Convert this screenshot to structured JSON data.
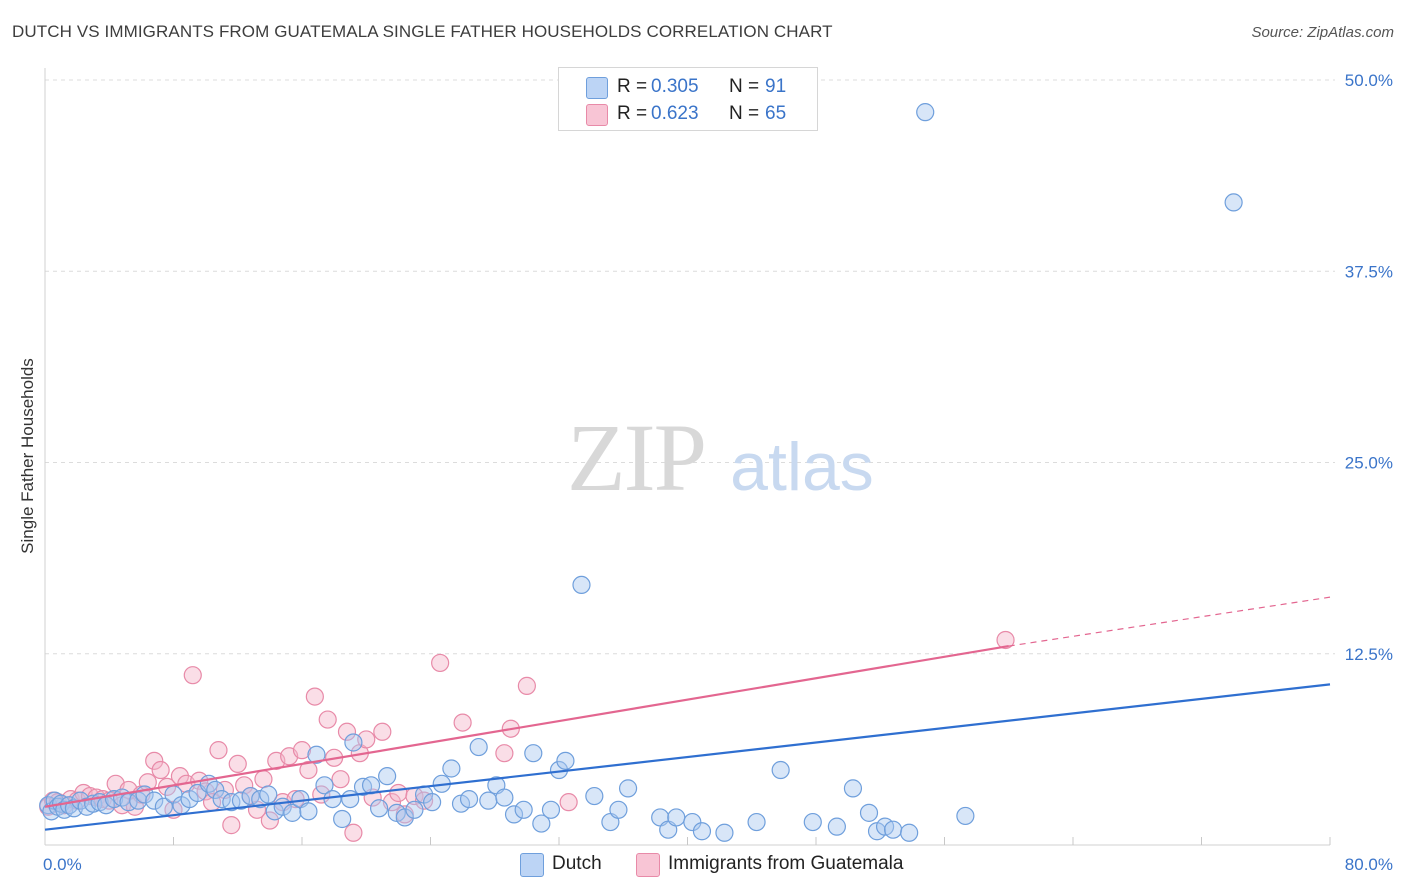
{
  "title": "DUTCH VS IMMIGRANTS FROM GUATEMALA SINGLE FATHER HOUSEHOLDS CORRELATION CHART",
  "source": "Source: ZipAtlas.com",
  "watermark": {
    "zip": "ZIP",
    "atlas": "atlas"
  },
  "colors": {
    "dutch_fill": "#a9c8f0",
    "dutch_stroke": "#6f9fdc",
    "dutch_line": "#2f6fd0",
    "guat_fill": "#f5b5c9",
    "guat_stroke": "#e88aa8",
    "guat_line": "#e36690",
    "axis_text": "#3a74c9",
    "grid": "#dcdcdc"
  },
  "legend": {
    "rows": [
      {
        "r_label": "R =",
        "r_value": "0.305",
        "n_label": "N =",
        "n_value": "91"
      },
      {
        "r_label": "R =",
        "r_value": "0.623",
        "n_label": "N =",
        "n_value": "65"
      }
    ]
  },
  "bottom_legend": {
    "dutch": "Dutch",
    "guat": "Immigrants from Guatemala"
  },
  "chart_data": {
    "type": "scatter",
    "ylabel": "Single Father Households",
    "xlim": [
      0,
      80
    ],
    "ylim": [
      0,
      50
    ],
    "x_tick_labels": [
      "0.0%",
      "80.0%"
    ],
    "y_ticks": [
      12.5,
      25.0,
      37.5,
      50.0
    ],
    "y_tick_labels": [
      "12.5%",
      "25.0%",
      "37.5%",
      "50.0%"
    ],
    "grid": true,
    "legend_position": "top-center",
    "series": [
      {
        "name": "Dutch",
        "trend": {
          "x": [
            0,
            80
          ],
          "y": [
            1.0,
            10.5
          ],
          "style": "solid"
        },
        "points": [
          [
            0.2,
            2.6
          ],
          [
            0.4,
            2.2
          ],
          [
            0.6,
            2.9
          ],
          [
            0.8,
            2.5
          ],
          [
            1.0,
            2.7
          ],
          [
            1.2,
            2.3
          ],
          [
            1.5,
            2.6
          ],
          [
            1.8,
            2.4
          ],
          [
            2.2,
            2.9
          ],
          [
            2.6,
            2.5
          ],
          [
            3.0,
            2.7
          ],
          [
            3.4,
            2.8
          ],
          [
            3.8,
            2.6
          ],
          [
            4.3,
            3.0
          ],
          [
            4.8,
            3.1
          ],
          [
            5.2,
            2.8
          ],
          [
            5.8,
            2.9
          ],
          [
            6.2,
            3.3
          ],
          [
            6.8,
            2.9
          ],
          [
            7.4,
            2.5
          ],
          [
            8.0,
            3.3
          ],
          [
            8.5,
            2.6
          ],
          [
            9.0,
            3.0
          ],
          [
            9.5,
            3.4
          ],
          [
            10.2,
            4.0
          ],
          [
            10.6,
            3.6
          ],
          [
            11.0,
            3.0
          ],
          [
            11.6,
            2.8
          ],
          [
            12.2,
            2.9
          ],
          [
            12.8,
            3.2
          ],
          [
            13.4,
            3.0
          ],
          [
            13.9,
            3.3
          ],
          [
            14.3,
            2.2
          ],
          [
            14.8,
            2.5
          ],
          [
            15.4,
            2.1
          ],
          [
            15.9,
            3.0
          ],
          [
            16.4,
            2.2
          ],
          [
            16.9,
            5.9
          ],
          [
            17.4,
            3.9
          ],
          [
            17.9,
            3.0
          ],
          [
            18.5,
            1.7
          ],
          [
            19.0,
            3.0
          ],
          [
            19.2,
            6.7
          ],
          [
            19.8,
            3.8
          ],
          [
            20.3,
            3.9
          ],
          [
            20.8,
            2.4
          ],
          [
            21.3,
            4.5
          ],
          [
            21.9,
            2.1
          ],
          [
            22.4,
            1.8
          ],
          [
            23.0,
            2.3
          ],
          [
            23.6,
            3.3
          ],
          [
            24.1,
            2.8
          ],
          [
            24.7,
            4.0
          ],
          [
            25.3,
            5.0
          ],
          [
            25.9,
            2.7
          ],
          [
            26.4,
            3.0
          ],
          [
            27.0,
            6.4
          ],
          [
            27.6,
            2.9
          ],
          [
            28.1,
            3.9
          ],
          [
            28.6,
            3.1
          ],
          [
            29.2,
            2.0
          ],
          [
            29.8,
            2.3
          ],
          [
            30.4,
            6.0
          ],
          [
            30.9,
            1.4
          ],
          [
            31.5,
            2.3
          ],
          [
            32.0,
            4.9
          ],
          [
            32.4,
            5.5
          ],
          [
            33.4,
            17.0
          ],
          [
            34.2,
            3.2
          ],
          [
            35.2,
            1.5
          ],
          [
            35.7,
            2.3
          ],
          [
            36.3,
            3.7
          ],
          [
            38.3,
            1.8
          ],
          [
            38.8,
            1.0
          ],
          [
            39.3,
            1.8
          ],
          [
            40.3,
            1.5
          ],
          [
            40.9,
            0.9
          ],
          [
            42.3,
            0.8
          ],
          [
            44.3,
            1.5
          ],
          [
            45.8,
            4.9
          ],
          [
            47.8,
            1.5
          ],
          [
            49.3,
            1.2
          ],
          [
            50.3,
            3.7
          ],
          [
            51.3,
            2.1
          ],
          [
            51.8,
            0.9
          ],
          [
            52.3,
            1.2
          ],
          [
            52.8,
            1.0
          ],
          [
            53.8,
            0.8
          ],
          [
            57.3,
            1.9
          ],
          [
            54.8,
            47.9
          ],
          [
            74.0,
            42.0
          ]
        ]
      },
      {
        "name": "Immigrants from Guatemala",
        "trend": {
          "x": [
            0,
            60
          ],
          "y": [
            2.5,
            13.0
          ],
          "x_dashed_end": 80,
          "y_dashed_end": 16.2
        },
        "points": [
          [
            0.2,
            2.5
          ],
          [
            0.5,
            2.9
          ],
          [
            0.8,
            2.8
          ],
          [
            1.2,
            2.6
          ],
          [
            1.6,
            3.0
          ],
          [
            2.0,
            2.9
          ],
          [
            2.4,
            3.4
          ],
          [
            2.8,
            3.2
          ],
          [
            3.2,
            3.1
          ],
          [
            3.6,
            3.0
          ],
          [
            4.0,
            2.9
          ],
          [
            4.4,
            4.0
          ],
          [
            4.8,
            2.6
          ],
          [
            5.2,
            3.6
          ],
          [
            5.6,
            2.5
          ],
          [
            6.0,
            3.3
          ],
          [
            6.4,
            4.1
          ],
          [
            6.8,
            5.5
          ],
          [
            7.2,
            4.9
          ],
          [
            7.6,
            3.8
          ],
          [
            8.0,
            2.3
          ],
          [
            8.4,
            4.5
          ],
          [
            8.8,
            4.0
          ],
          [
            9.2,
            11.1
          ],
          [
            9.6,
            4.2
          ],
          [
            10.0,
            3.5
          ],
          [
            10.4,
            2.8
          ],
          [
            10.8,
            6.2
          ],
          [
            11.2,
            3.6
          ],
          [
            11.6,
            1.3
          ],
          [
            12.0,
            5.3
          ],
          [
            12.4,
            3.9
          ],
          [
            12.8,
            3.2
          ],
          [
            13.2,
            2.3
          ],
          [
            13.6,
            4.3
          ],
          [
            14.0,
            1.6
          ],
          [
            14.4,
            5.5
          ],
          [
            14.8,
            2.8
          ],
          [
            15.2,
            5.8
          ],
          [
            15.6,
            3.0
          ],
          [
            16.0,
            6.2
          ],
          [
            16.4,
            4.9
          ],
          [
            16.8,
            9.7
          ],
          [
            17.2,
            3.3
          ],
          [
            17.6,
            8.2
          ],
          [
            18.0,
            5.7
          ],
          [
            18.4,
            4.3
          ],
          [
            18.8,
            7.4
          ],
          [
            19.2,
            0.8
          ],
          [
            19.6,
            6.0
          ],
          [
            20.0,
            6.9
          ],
          [
            20.4,
            3.1
          ],
          [
            21.0,
            7.4
          ],
          [
            21.6,
            2.8
          ],
          [
            22.0,
            3.4
          ],
          [
            22.4,
            2.0
          ],
          [
            23.0,
            3.2
          ],
          [
            23.6,
            2.9
          ],
          [
            24.6,
            11.9
          ],
          [
            26.0,
            8.0
          ],
          [
            28.6,
            6.0
          ],
          [
            29.0,
            7.6
          ],
          [
            30.0,
            10.4
          ],
          [
            32.6,
            2.8
          ],
          [
            59.8,
            13.4
          ]
        ]
      }
    ]
  }
}
